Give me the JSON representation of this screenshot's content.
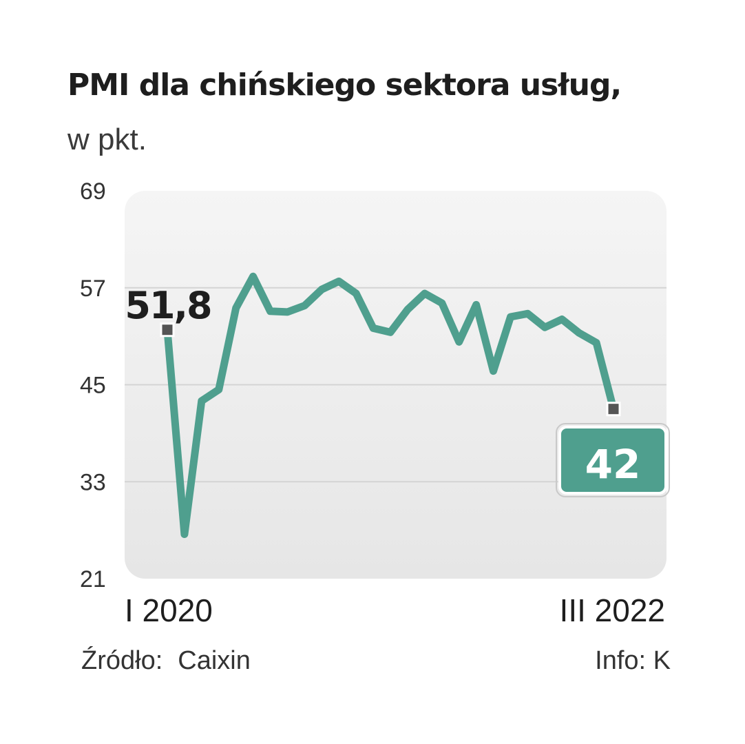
{
  "title": "PMI dla chińskiego sektora usług,",
  "subtitle": "w pkt.",
  "source_label": "Źródło:",
  "source_value": "Caixin",
  "credit": "Info: K",
  "colors": {
    "line": "#4f9f8e",
    "plot_bg_top": "#f5f5f5",
    "plot_bg_bottom": "#e6e6e6",
    "grid": "#d4d4d4",
    "marker": "#555555",
    "last_box": "#4f9f8e",
    "text": "#222222"
  },
  "chart_data": {
    "type": "line",
    "title": "PMI dla chińskiego sektora usług,",
    "subtitle": "w pkt.",
    "xlabel": "",
    "ylabel": "",
    "ylim": [
      21,
      69
    ],
    "yticks": [
      69,
      57,
      45,
      33,
      21
    ],
    "grid": true,
    "x_tick_labels": [
      {
        "index": 0,
        "label": "I 2020"
      },
      {
        "index": 26,
        "label": "III 2022"
      }
    ],
    "series": [
      {
        "values": [
          51.8,
          26.5,
          43.0,
          44.4,
          54.5,
          58.4,
          54.1,
          54.0,
          54.8,
          56.8,
          57.8,
          56.3,
          52.0,
          51.5,
          54.3,
          56.3,
          55.1,
          50.3,
          54.9,
          46.7,
          53.4,
          53.8,
          52.1,
          53.1,
          51.4,
          50.2,
          42.0
        ],
        "annotations": [
          {
            "index": 0,
            "text": "51,8",
            "style": "bold-label"
          },
          {
            "index": 26,
            "text": "42",
            "style": "boxed-label"
          }
        ]
      }
    ]
  }
}
